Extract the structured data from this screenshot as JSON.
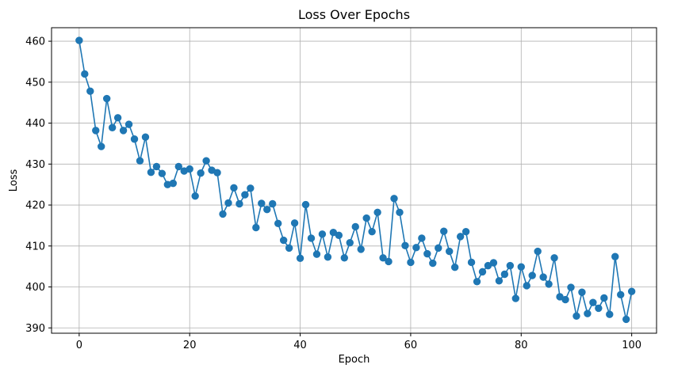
{
  "chart_data": {
    "type": "line",
    "title": "Loss Over Epochs",
    "xlabel": "Epoch",
    "ylabel": "Loss",
    "xlim": [
      -5,
      104.5
    ],
    "ylim": [
      388.7,
      463.3
    ],
    "xticks": [
      0,
      20,
      40,
      60,
      80,
      100
    ],
    "yticks": [
      390,
      400,
      410,
      420,
      430,
      440,
      450,
      460
    ],
    "grid": true,
    "series": [
      {
        "color": "#1f77b4",
        "marker": "circle",
        "x": [
          0,
          1,
          2,
          3,
          4,
          5,
          6,
          7,
          8,
          9,
          10,
          11,
          12,
          13,
          14,
          15,
          16,
          17,
          18,
          19,
          20,
          21,
          22,
          23,
          24,
          25,
          26,
          27,
          28,
          29,
          30,
          31,
          32,
          33,
          34,
          35,
          36,
          37,
          38,
          39,
          40,
          41,
          42,
          43,
          44,
          45,
          46,
          47,
          48,
          49,
          50,
          51,
          52,
          53,
          54,
          55,
          56,
          57,
          58,
          59,
          60,
          61,
          62,
          63,
          64,
          65,
          66,
          67,
          68,
          69,
          70,
          71,
          72,
          73,
          74,
          75,
          76,
          77,
          78,
          79,
          80,
          81,
          82,
          83,
          84,
          85,
          86,
          87,
          88,
          89,
          90,
          91,
          92,
          93,
          94,
          95,
          96,
          97,
          98,
          99,
          100
        ],
        "values": [
          460.2,
          452.0,
          447.8,
          438.2,
          434.3,
          446.0,
          438.9,
          441.3,
          438.2,
          439.7,
          436.1,
          430.8,
          436.6,
          428.0,
          429.4,
          427.7,
          425.0,
          425.3,
          429.4,
          428.3,
          428.8,
          422.2,
          427.8,
          430.8,
          428.5,
          427.9,
          417.8,
          420.5,
          424.2,
          420.3,
          422.5,
          424.1,
          414.5,
          420.4,
          418.9,
          420.3,
          415.5,
          411.4,
          409.5,
          415.6,
          407.0,
          420.1,
          411.9,
          408.0,
          412.9,
          407.3,
          413.3,
          412.6,
          407.1,
          410.8,
          414.7,
          409.2,
          416.8,
          413.5,
          418.2,
          407.1,
          406.2,
          421.6,
          418.2,
          410.1,
          406.0,
          409.6,
          411.9,
          408.1,
          405.8,
          409.5,
          413.6,
          408.7,
          404.8,
          412.3,
          413.5,
          406.0,
          401.3,
          403.7,
          405.2,
          405.9,
          401.5,
          403.1,
          405.2,
          397.2,
          404.9,
          400.3,
          402.8,
          408.7,
          402.4,
          400.7,
          407.1,
          397.6,
          396.9,
          399.9,
          392.9,
          398.7,
          393.5,
          396.2,
          394.8,
          397.3,
          393.3,
          407.4,
          398.1,
          392.1,
          398.9
        ]
      }
    ]
  }
}
